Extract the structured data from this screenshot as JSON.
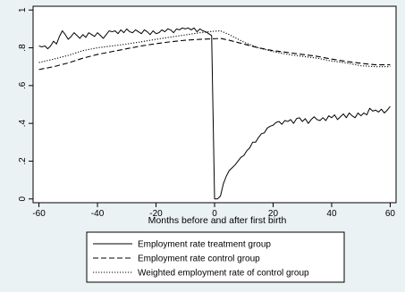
{
  "chart_data": {
    "type": "line",
    "title": "",
    "xlabel": "Months before and after first birth",
    "ylabel": "",
    "xlim": [
      -62,
      62
    ],
    "ylim": [
      -0.02,
      1.02
    ],
    "xticks": [
      -60,
      -40,
      -20,
      0,
      20,
      40,
      60
    ],
    "xtick_labels": [
      "-60",
      "-40",
      "-20",
      "0",
      "20",
      "40",
      "60"
    ],
    "yticks": [
      0,
      0.2,
      0.4,
      0.6,
      0.8,
      1
    ],
    "ytick_labels": [
      "0",
      ".2",
      ".4",
      ".6",
      ".8",
      "1"
    ],
    "grid": false,
    "legend_position": "bottom",
    "series": [
      {
        "name": "Employment rate treatment group",
        "style": "solid",
        "x": [
          -60,
          -59,
          -58,
          -57,
          -56,
          -55,
          -54,
          -53,
          -52,
          -51,
          -50,
          -49,
          -48,
          -47,
          -46,
          -45,
          -44,
          -43,
          -42,
          -41,
          -40,
          -39,
          -38,
          -37,
          -36,
          -35,
          -34,
          -33,
          -32,
          -31,
          -30,
          -29,
          -28,
          -27,
          -26,
          -25,
          -24,
          -23,
          -22,
          -21,
          -20,
          -19,
          -18,
          -17,
          -16,
          -15,
          -14,
          -13,
          -12,
          -11,
          -10,
          -9,
          -8,
          -7,
          -6,
          -5,
          -4,
          -3,
          -2,
          -1,
          0,
          1,
          2,
          3,
          4,
          5,
          6,
          7,
          8,
          9,
          10,
          11,
          12,
          13,
          14,
          15,
          16,
          17,
          18,
          19,
          20,
          21,
          22,
          23,
          24,
          25,
          26,
          27,
          28,
          29,
          30,
          31,
          32,
          33,
          34,
          35,
          36,
          37,
          38,
          39,
          40,
          41,
          42,
          43,
          44,
          45,
          46,
          47,
          48,
          49,
          50,
          51,
          52,
          53,
          54,
          55,
          56,
          57,
          58,
          59,
          60
        ],
        "y": [
          0.81,
          0.805,
          0.81,
          0.795,
          0.81,
          0.835,
          0.82,
          0.86,
          0.89,
          0.87,
          0.845,
          0.86,
          0.88,
          0.865,
          0.85,
          0.87,
          0.855,
          0.88,
          0.87,
          0.86,
          0.88,
          0.865,
          0.85,
          0.87,
          0.89,
          0.885,
          0.89,
          0.875,
          0.895,
          0.88,
          0.9,
          0.885,
          0.88,
          0.895,
          0.885,
          0.875,
          0.895,
          0.885,
          0.87,
          0.89,
          0.875,
          0.88,
          0.895,
          0.885,
          0.9,
          0.895,
          0.88,
          0.9,
          0.895,
          0.905,
          0.9,
          0.905,
          0.895,
          0.905,
          0.885,
          0.9,
          0.89,
          0.885,
          0.875,
          0.865,
          0.0,
          0.0,
          0.015,
          0.08,
          0.12,
          0.15,
          0.165,
          0.18,
          0.2,
          0.22,
          0.23,
          0.255,
          0.27,
          0.3,
          0.3,
          0.325,
          0.345,
          0.35,
          0.375,
          0.385,
          0.39,
          0.405,
          0.41,
          0.395,
          0.415,
          0.41,
          0.42,
          0.4,
          0.425,
          0.43,
          0.41,
          0.425,
          0.4,
          0.42,
          0.435,
          0.42,
          0.415,
          0.43,
          0.415,
          0.44,
          0.43,
          0.445,
          0.42,
          0.435,
          0.45,
          0.43,
          0.455,
          0.44,
          0.43,
          0.455,
          0.44,
          0.455,
          0.445,
          0.48,
          0.465,
          0.47,
          0.46,
          0.475,
          0.455,
          0.47,
          0.49
        ]
      },
      {
        "name": "Employment rate control group",
        "style": "dashed",
        "x": [
          -60,
          -55,
          -50,
          -45,
          -40,
          -35,
          -30,
          -25,
          -20,
          -15,
          -10,
          -5,
          0,
          2,
          5,
          10,
          15,
          20,
          25,
          30,
          35,
          40,
          45,
          50,
          55,
          60
        ],
        "y": [
          0.685,
          0.7,
          0.72,
          0.745,
          0.765,
          0.78,
          0.795,
          0.81,
          0.822,
          0.832,
          0.84,
          0.845,
          0.848,
          0.85,
          0.84,
          0.82,
          0.8,
          0.785,
          0.775,
          0.765,
          0.755,
          0.74,
          0.728,
          0.718,
          0.71,
          0.71
        ]
      },
      {
        "name": "Weighted employment rate of control group",
        "style": "dotted",
        "x": [
          -60,
          -55,
          -50,
          -45,
          -40,
          -35,
          -30,
          -25,
          -20,
          -15,
          -10,
          -5,
          -2,
          0,
          2,
          5,
          10,
          15,
          20,
          25,
          30,
          35,
          40,
          45,
          50,
          55,
          60
        ],
        "y": [
          0.722,
          0.74,
          0.76,
          0.785,
          0.8,
          0.81,
          0.82,
          0.832,
          0.845,
          0.857,
          0.868,
          0.88,
          0.885,
          0.888,
          0.89,
          0.87,
          0.83,
          0.8,
          0.78,
          0.765,
          0.755,
          0.745,
          0.73,
          0.72,
          0.705,
          0.7,
          0.7
        ]
      }
    ]
  }
}
